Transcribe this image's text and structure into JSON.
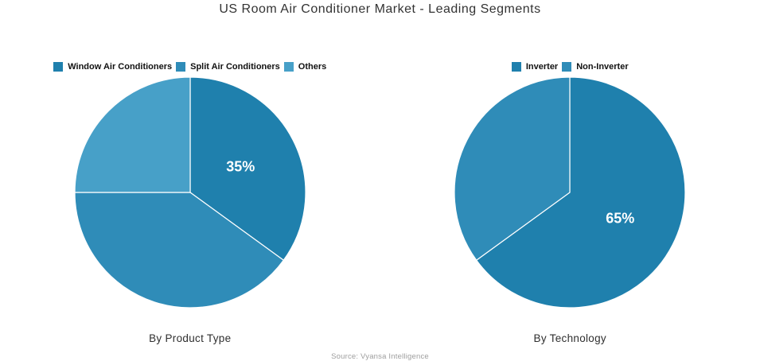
{
  "title": "US Room Air Conditioner Market - Leading Segments",
  "source": "Source: Vyansa Intelligence",
  "palette": {
    "dark_blue": "#1f80ad",
    "medium_blue": "#2f8cb8",
    "light_blue": "#47a0c8",
    "title_color": "#333333",
    "source_color": "#9e9e9e"
  },
  "chart_data": [
    {
      "type": "pie",
      "title": "By Product Type",
      "categories": [
        "Window Air Conditioners",
        "Split Air Conditioners",
        "Others"
      ],
      "values": [
        35,
        40,
        25
      ],
      "labels": [
        "35%",
        "",
        ""
      ],
      "colors": [
        "#1f80ad",
        "#2f8cb8",
        "#47a0c8"
      ],
      "legend_position": "top",
      "start_angle_deg": 0,
      "direction": "clockwise"
    },
    {
      "type": "pie",
      "title": "By Technology",
      "categories": [
        "Inverter",
        "Non-Inverter"
      ],
      "values": [
        65,
        35
      ],
      "labels": [
        "65%",
        ""
      ],
      "colors": [
        "#1f80ad",
        "#2f8cb8"
      ],
      "legend_position": "top",
      "start_angle_deg": 0,
      "direction": "clockwise"
    }
  ]
}
